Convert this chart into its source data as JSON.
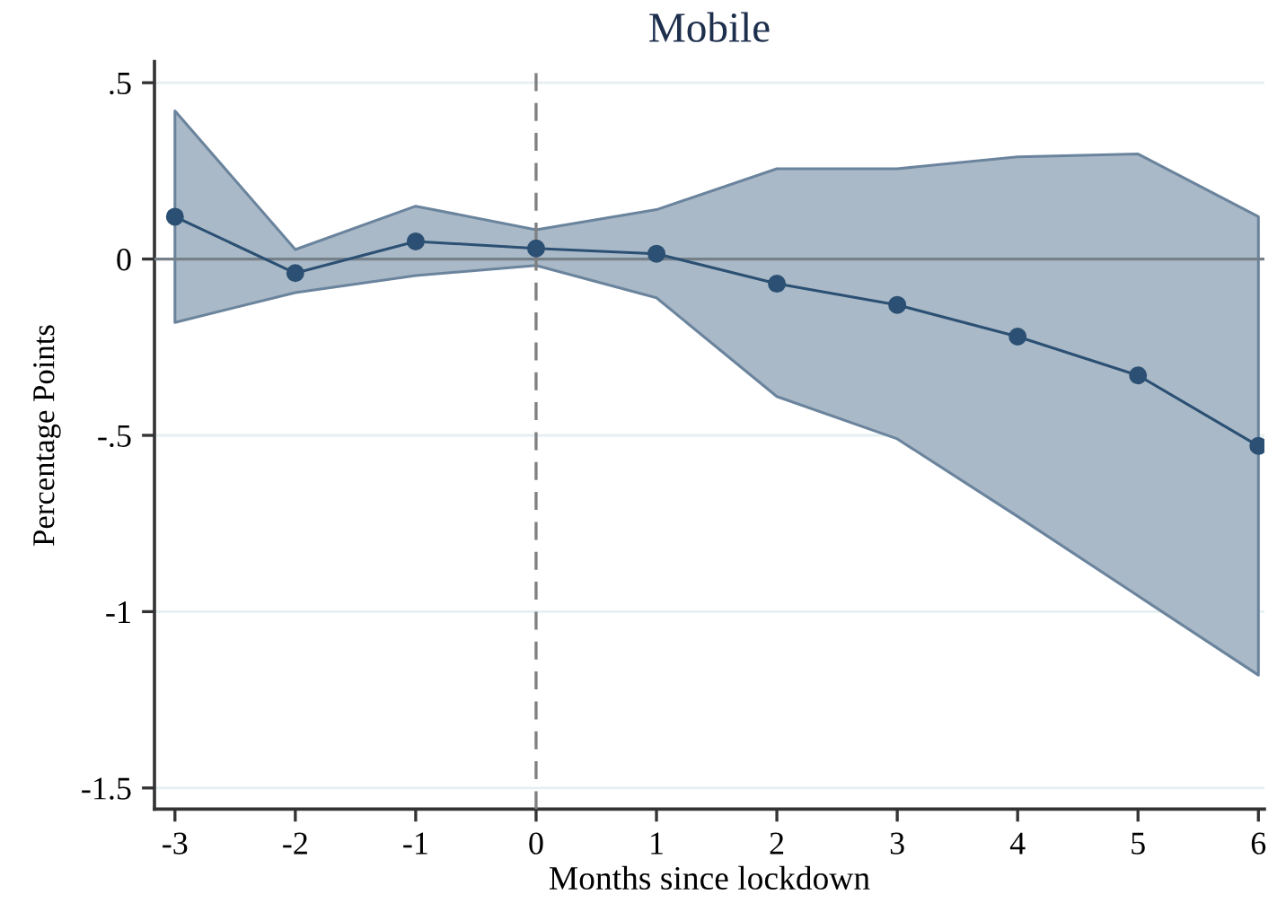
{
  "chart_data": {
    "type": "line",
    "title": "Mobile",
    "xlabel": "Months since lockdown",
    "ylabel": "Percentage Points",
    "x": [
      -3,
      -2,
      -1,
      0,
      1,
      2,
      3,
      4,
      5,
      6
    ],
    "series": [
      {
        "color": "#2b5073",
        "values": [
          0.12,
          -0.04,
          0.05,
          0.03,
          0.015,
          -0.07,
          -0.13,
          -0.22,
          -0.33,
          -0.53
        ],
        "lower": [
          -0.18,
          -0.095,
          -0.047,
          -0.018,
          -0.11,
          -0.39,
          -0.51,
          -0.73,
          -0.955,
          -1.18
        ],
        "upper": [
          0.42,
          0.027,
          0.15,
          0.083,
          0.14,
          0.256,
          0.256,
          0.29,
          0.298,
          0.12
        ]
      }
    ],
    "xlim": [
      -3.17,
      6.05
    ],
    "ylim": [
      -1.56,
      0.56
    ],
    "xticks": [
      -3,
      -2,
      -1,
      0,
      1,
      2,
      3,
      4,
      5,
      6
    ],
    "yticks": [
      {
        "value": 0.5,
        "label": ".5"
      },
      0,
      {
        "value": -0.5,
        "label": "-.5"
      },
      -1,
      -1.5
    ],
    "ref_lines": [
      {
        "axis": "y",
        "value": 0,
        "color": "#75808a"
      },
      {
        "axis": "x",
        "value": 0,
        "color": "#808080",
        "line_style": "dashed"
      }
    ],
    "grid": "y",
    "marker": "circle",
    "line_style": "solid"
  }
}
